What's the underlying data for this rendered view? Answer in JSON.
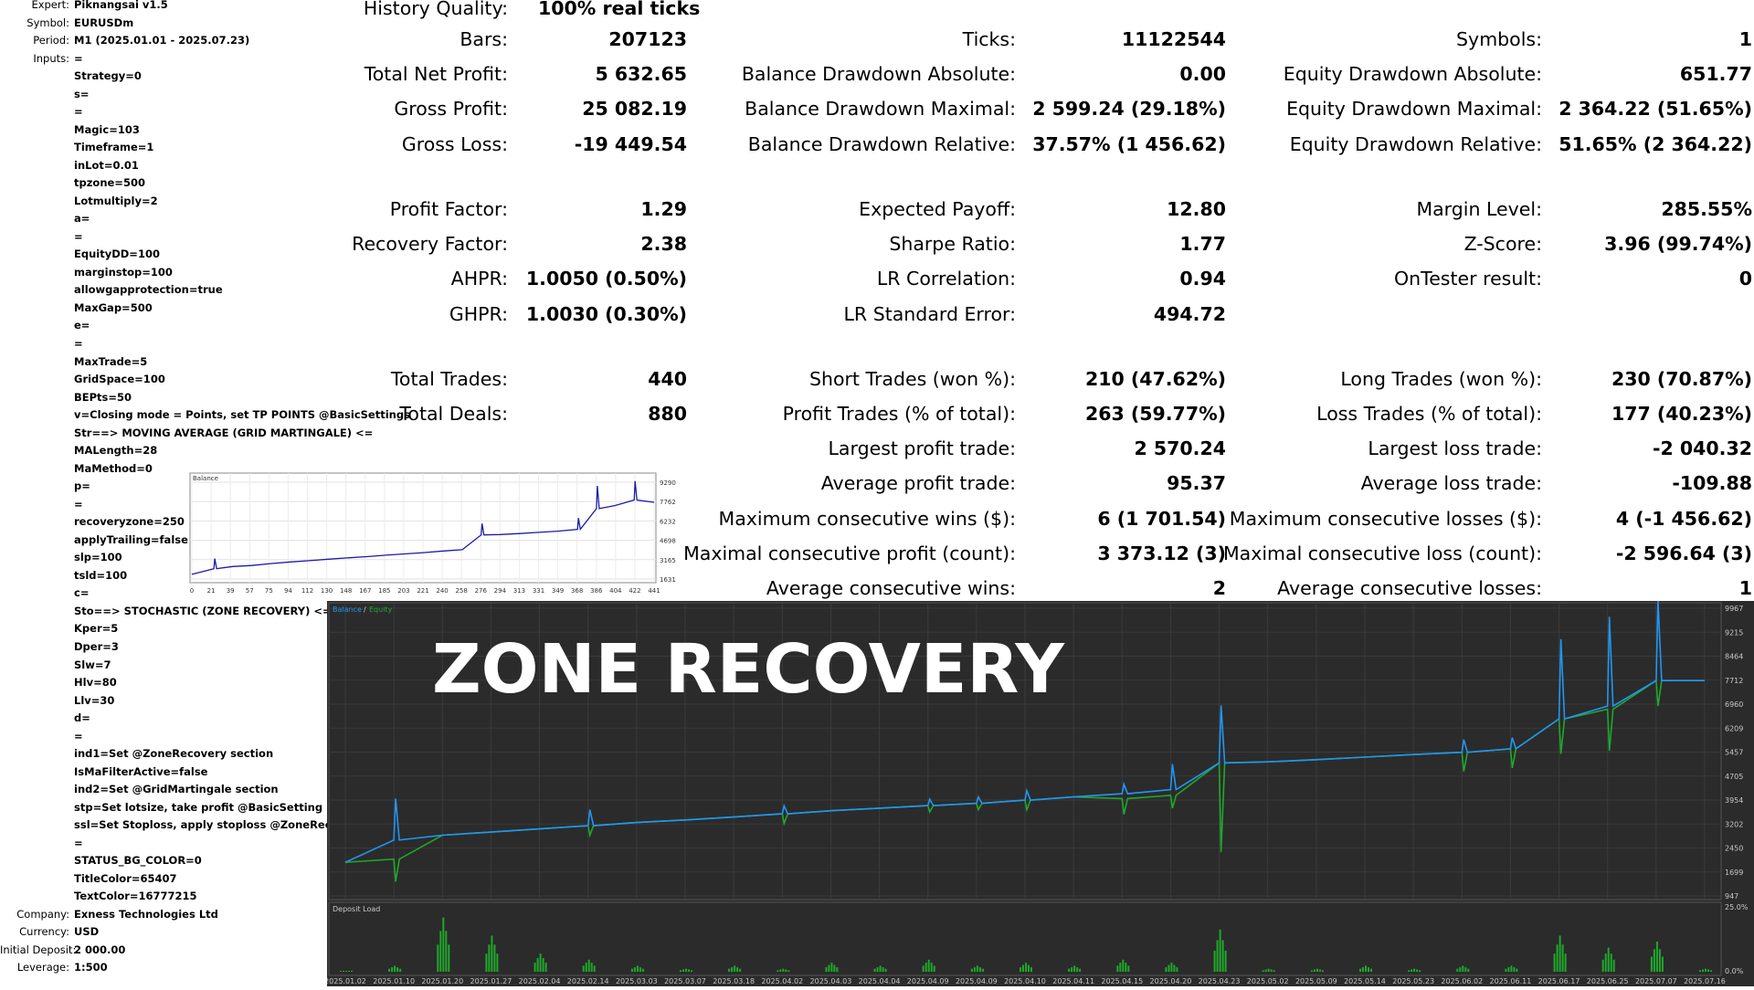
{
  "settings": [
    {
      "label": "Expert:",
      "value": "Piknangsai v1.5"
    },
    {
      "label": "Symbol:",
      "value": "EURUSDm"
    },
    {
      "label": "Period:",
      "value": "M1 (2025.01.01 - 2025.07.23)"
    },
    {
      "label": "Inputs:",
      "value": "="
    },
    {
      "label": "",
      "value": "Strategy=0"
    },
    {
      "label": "",
      "value": "s="
    },
    {
      "label": "",
      "value": "="
    },
    {
      "label": "",
      "value": "Magic=103"
    },
    {
      "label": "",
      "value": "Timeframe=1"
    },
    {
      "label": "",
      "value": "inLot=0.01"
    },
    {
      "label": "",
      "value": "tpzone=500"
    },
    {
      "label": "",
      "value": "Lotmultiply=2"
    },
    {
      "label": "",
      "value": "a="
    },
    {
      "label": "",
      "value": "="
    },
    {
      "label": "",
      "value": "EquityDD=100"
    },
    {
      "label": "",
      "value": "marginstop=100"
    },
    {
      "label": "",
      "value": "allowgapprotection=true"
    },
    {
      "label": "",
      "value": "MaxGap=500"
    },
    {
      "label": "",
      "value": "e="
    },
    {
      "label": "",
      "value": "="
    },
    {
      "label": "",
      "value": "MaxTrade=5"
    },
    {
      "label": "",
      "value": "GridSpace=100"
    },
    {
      "label": "",
      "value": "BEPts=50"
    },
    {
      "label": "",
      "value": "v=Closing mode = Points, set TP POINTS @BasicSettings"
    },
    {
      "label": "",
      "value": "Str==> MOVING AVERAGE (GRID MARTINGALE) <="
    },
    {
      "label": "",
      "value": "MALength=28"
    },
    {
      "label": "",
      "value": "MaMethod=0"
    },
    {
      "label": "",
      "value": "p="
    },
    {
      "label": "",
      "value": "="
    },
    {
      "label": "",
      "value": "recoveryzone=250"
    },
    {
      "label": "",
      "value": "applyTrailing=false"
    },
    {
      "label": "",
      "value": "slp=100"
    },
    {
      "label": "",
      "value": "tsld=100"
    },
    {
      "label": "",
      "value": "c="
    },
    {
      "label": "",
      "value": "Sto==> STOCHASTIC (ZONE RECOVERY) <="
    },
    {
      "label": "",
      "value": "Kper=5"
    },
    {
      "label": "",
      "value": "Dper=3"
    },
    {
      "label": "",
      "value": "Slw=7"
    },
    {
      "label": "",
      "value": "Hlv=80"
    },
    {
      "label": "",
      "value": "Llv=30"
    },
    {
      "label": "",
      "value": "d="
    },
    {
      "label": "",
      "value": "="
    },
    {
      "label": "",
      "value": "ind1=Set @ZoneRecovery section"
    },
    {
      "label": "",
      "value": "IsMaFilterActive=false"
    },
    {
      "label": "",
      "value": "ind2=Set @GridMartingale section"
    },
    {
      "label": "",
      "value": "stp=Set lotsize, take profit @BasicSetting"
    },
    {
      "label": "",
      "value": "ssl=Set Stoploss, apply stoploss @ZoneRecovery"
    },
    {
      "label": "",
      "value": "="
    },
    {
      "label": "",
      "value": "STATUS_BG_COLOR=0"
    },
    {
      "label": "",
      "value": "TitleColor=65407"
    },
    {
      "label": "",
      "value": "TextColor=16777215"
    },
    {
      "label": "Company:",
      "value": "Exness Technologies Ltd"
    },
    {
      "label": "Currency:",
      "value": "USD"
    },
    {
      "label": "Initial Deposit:",
      "value": "2 000.00"
    },
    {
      "label": "Leverage:",
      "value": "1:500"
    }
  ],
  "stats": {
    "history_quality": {
      "label": "History Quality:",
      "value": "100% real ticks"
    },
    "col1": [
      {
        "label": "Bars:",
        "value": "207123"
      },
      {
        "label": "Total Net Profit:",
        "value": "5 632.65"
      },
      {
        "label": "Gross Profit:",
        "value": "25 082.19"
      },
      {
        "label": "Gross Loss:",
        "value": "-19 449.54"
      },
      {
        "label": "Profit Factor:",
        "value": "1.29"
      },
      {
        "label": "Recovery Factor:",
        "value": "2.38"
      },
      {
        "label": "AHPR:",
        "value": "1.0050 (0.50%)"
      },
      {
        "label": "GHPR:",
        "value": "1.0030 (0.30%)"
      },
      {
        "label": "Total Trades:",
        "value": "440"
      },
      {
        "label": "Total Deals:",
        "value": "880"
      }
    ],
    "col2": [
      {
        "label": "Ticks:",
        "value": "11122544"
      },
      {
        "label": "Balance Drawdown Absolute:",
        "value": "0.00"
      },
      {
        "label": "Balance Drawdown Maximal:",
        "value": "2 599.24 (29.18%)"
      },
      {
        "label": "Balance Drawdown Relative:",
        "value": "37.57% (1 456.62)"
      },
      {
        "label": "Expected Payoff:",
        "value": "12.80"
      },
      {
        "label": "Sharpe Ratio:",
        "value": "1.77"
      },
      {
        "label": "LR Correlation:",
        "value": "0.94"
      },
      {
        "label": "LR Standard Error:",
        "value": "494.72"
      },
      {
        "label": "Short Trades (won %):",
        "value": "210 (47.62%)"
      },
      {
        "label": "Profit Trades (% of total):",
        "value": "263 (59.77%)"
      },
      {
        "label": "Largest profit trade:",
        "value": "2 570.24"
      },
      {
        "label": "Average profit trade:",
        "value": "95.37"
      },
      {
        "label": "Maximum consecutive wins ($):",
        "value": "6 (1 701.54)"
      },
      {
        "label": "Maximal consecutive profit (count):",
        "value": "3 373.12 (3)"
      },
      {
        "label": "Average consecutive wins:",
        "value": "2"
      }
    ],
    "col3": [
      {
        "label": "Symbols:",
        "value": "1"
      },
      {
        "label": "Equity Drawdown Absolute:",
        "value": "651.77"
      },
      {
        "label": "Equity Drawdown Maximal:",
        "value": "2 364.22 (51.65%)"
      },
      {
        "label": "Equity Drawdown Relative:",
        "value": "51.65% (2 364.22)"
      },
      {
        "label": "Margin Level:",
        "value": "285.55%"
      },
      {
        "label": "Z-Score:",
        "value": "3.96 (99.74%)"
      },
      {
        "label": "OnTester result:",
        "value": "0"
      },
      {
        "label": "Long Trades (won %):",
        "value": "230 (70.87%)"
      },
      {
        "label": "Loss Trades (% of total):",
        "value": "177 (40.23%)"
      },
      {
        "label": "Largest loss trade:",
        "value": "-2 040.32"
      },
      {
        "label": "Average loss trade:",
        "value": "-109.88"
      },
      {
        "label": "Maximum consecutive losses ($):",
        "value": "4 (-1 456.62)"
      },
      {
        "label": "Maximal consecutive loss (count):",
        "value": "-2 596.64 (3)"
      },
      {
        "label": "Average consecutive losses:",
        "value": "1"
      }
    ]
  },
  "mini_chart": {
    "title": "Balance",
    "line_color": "#1a1aa8",
    "y_ticks": [
      "9290",
      "7762",
      "6232",
      "4698",
      "3165",
      "1631"
    ],
    "x_ticks": [
      "0",
      "21",
      "39",
      "57",
      "75",
      "94",
      "112",
      "130",
      "148",
      "167",
      "185",
      "203",
      "221",
      "240",
      "258",
      "276",
      "294",
      "313",
      "331",
      "349",
      "368",
      "386",
      "404",
      "422",
      "441"
    ]
  },
  "main_chart": {
    "overlay_title": "ZONE RECOVERY",
    "legend": {
      "balance": "Balance",
      "equity": "Equity"
    },
    "deposit_label": "Deposit Load",
    "colors": {
      "bg": "#2b2b2b",
      "balance": "#2196f3",
      "equity": "#1fa82a",
      "grid": "#3b3b3b",
      "text": "#c8c8c8",
      "overlay": "#ffffff"
    },
    "y_ticks": [
      "9967",
      "9215",
      "8464",
      "7712",
      "6960",
      "6209",
      "5457",
      "4705",
      "3954",
      "3202",
      "2450",
      "1699",
      "947"
    ],
    "deposit_ticks": [
      "25.0%",
      "0.0%"
    ],
    "x_ticks": [
      "2025.01.02",
      "2025.01.10",
      "2025.01.20",
      "2025.01.27",
      "2025.02.04",
      "2025.02.14",
      "2025.03.03",
      "2025.03.07",
      "2025.03.18",
      "2025.04.02",
      "2025.04.03",
      "2025.04.04",
      "2025.04.09",
      "2025.04.09",
      "2025.04.10",
      "2025.04.11",
      "2025.04.15",
      "2025.04.20",
      "2025.04.23",
      "2025.05.02",
      "2025.05.09",
      "2025.05.14",
      "2025.05.23",
      "2025.06.02",
      "2025.06.11",
      "2025.06.17",
      "2025.06.25",
      "2025.07.07",
      "2025.07.16"
    ]
  },
  "chart_data": [
    {
      "type": "line",
      "title": "Balance",
      "x": [
        0,
        21,
        39,
        57,
        75,
        94,
        112,
        130,
        148,
        167,
        185,
        203,
        221,
        240,
        258,
        276,
        294,
        313,
        331,
        349,
        368,
        386,
        404,
        422,
        441
      ],
      "series": [
        {
          "name": "Balance",
          "values": [
            2000,
            2450,
            2620,
            2700,
            2850,
            2980,
            3080,
            3200,
            3300,
            3400,
            3520,
            3620,
            3720,
            3850,
            3950,
            5120,
            5150,
            5230,
            5320,
            5420,
            5560,
            7200,
            7450,
            7880,
            7700
          ]
        }
      ],
      "ylim": [
        1631,
        9290
      ]
    },
    {
      "type": "line",
      "categories": [
        "2025.01.02",
        "2025.01.10",
        "2025.01.20",
        "2025.01.27",
        "2025.02.04",
        "2025.02.14",
        "2025.03.03",
        "2025.03.07",
        "2025.03.18",
        "2025.04.02",
        "2025.04.03",
        "2025.04.04",
        "2025.04.09",
        "2025.04.09",
        "2025.04.10",
        "2025.04.11",
        "2025.04.15",
        "2025.04.20",
        "2025.04.23",
        "2025.05.02",
        "2025.05.09",
        "2025.05.14",
        "2025.05.23",
        "2025.06.02",
        "2025.06.11",
        "2025.06.17",
        "2025.06.25",
        "2025.07.07",
        "2025.07.16"
      ],
      "series": [
        {
          "name": "Balance",
          "values": [
            2000,
            2700,
            2850,
            2950,
            3050,
            3150,
            3250,
            3330,
            3420,
            3520,
            3620,
            3700,
            3780,
            3850,
            3950,
            4050,
            4150,
            4280,
            5120,
            5150,
            5220,
            5300,
            5380,
            5450,
            5560,
            6500,
            6900,
            7700,
            7700
          ]
        },
        {
          "name": "Equity",
          "values": [
            2000,
            2100,
            2850,
            2950,
            3050,
            3150,
            3250,
            3330,
            3420,
            3520,
            3620,
            3700,
            3780,
            3850,
            3950,
            4050,
            4000,
            4100,
            5120,
            5150,
            5220,
            5300,
            5380,
            5450,
            5560,
            6500,
            6800,
            7700,
            7700
          ]
        }
      ],
      "ylim": [
        947,
        9967
      ]
    }
  ]
}
